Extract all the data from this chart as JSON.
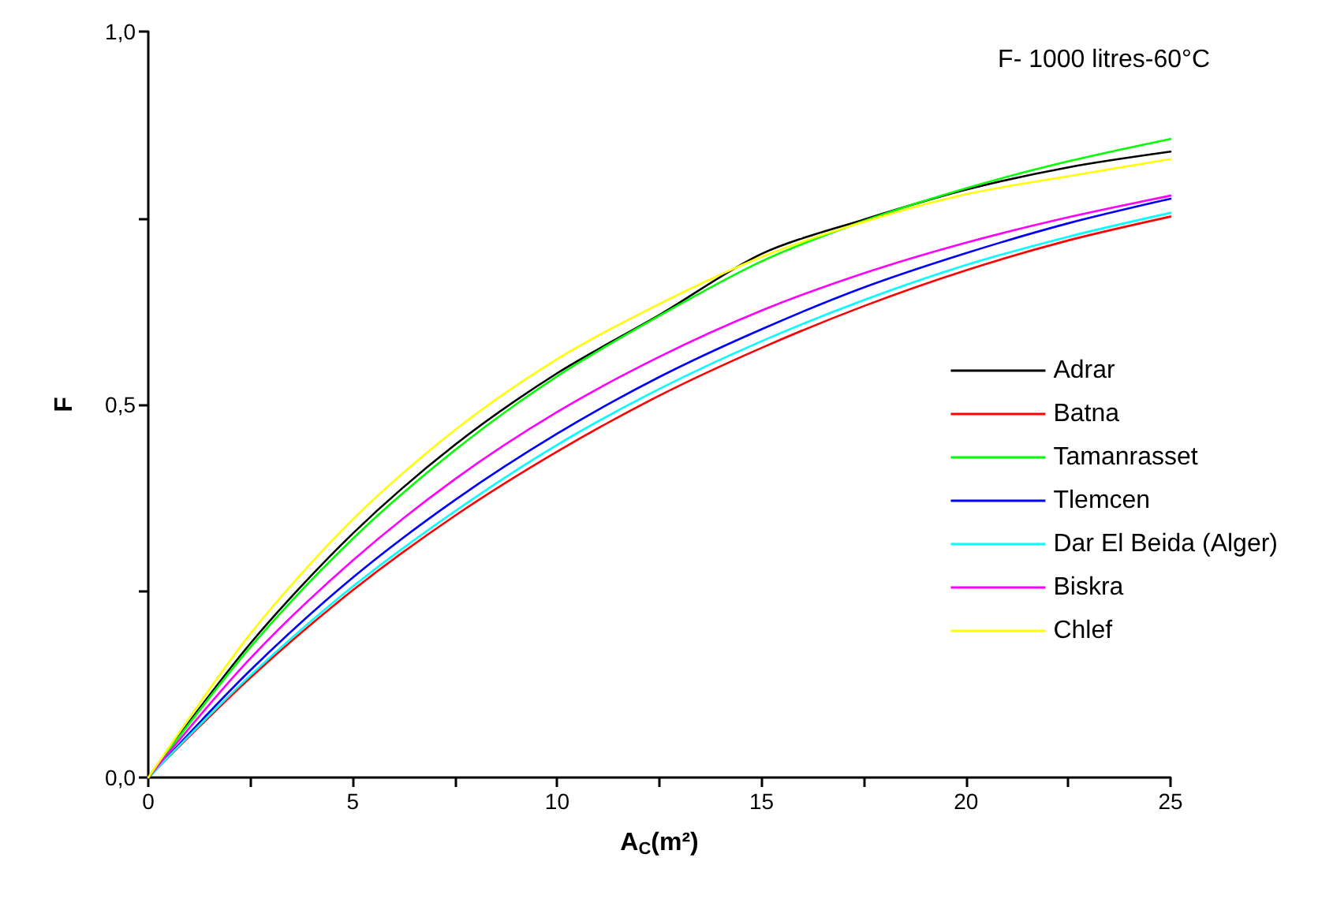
{
  "chart_data": {
    "type": "line",
    "xlabel": "A$_{C}$(m²)",
    "ylabel": "F",
    "annotations": [
      "F- 1000 litres-60°C"
    ],
    "x": [
      0,
      2.5,
      5,
      7.5,
      10,
      12.5,
      15,
      17.5,
      20,
      22.5,
      25
    ],
    "series": [
      {
        "name": "Adrar",
        "color": "#000000",
        "values": [
          0,
          0.18,
          0.327,
          0.446,
          0.542,
          0.62,
          0.702,
          0.748,
          0.788,
          0.818,
          0.839
        ]
      },
      {
        "name": "Batna",
        "color": "#ff0000",
        "values": [
          0,
          0.134,
          0.251,
          0.351,
          0.437,
          0.512,
          0.576,
          0.632,
          0.68,
          0.72,
          0.752
        ]
      },
      {
        "name": "Tamanrasset",
        "color": "#00ff00",
        "values": [
          0,
          0.175,
          0.32,
          0.439,
          0.538,
          0.619,
          0.692,
          0.746,
          0.79,
          0.826,
          0.856
        ]
      },
      {
        "name": "Tlemcen",
        "color": "#0000ff",
        "values": [
          0,
          0.144,
          0.268,
          0.372,
          0.461,
          0.537,
          0.601,
          0.657,
          0.703,
          0.743,
          0.776
        ]
      },
      {
        "name": "Dar El Beida (Alger)",
        "color": "#00ffff",
        "values": [
          0,
          0.137,
          0.256,
          0.357,
          0.446,
          0.521,
          0.585,
          0.64,
          0.687,
          0.725,
          0.757
        ]
      },
      {
        "name": "Biskra",
        "color": "#ff00ff",
        "values": [
          0,
          0.16,
          0.291,
          0.4,
          0.49,
          0.564,
          0.626,
          0.676,
          0.717,
          0.751,
          0.78
        ]
      },
      {
        "name": "Chlef",
        "color": "#ffff00",
        "values": [
          0,
          0.193,
          0.346,
          0.466,
          0.561,
          0.635,
          0.698,
          0.745,
          0.782,
          0.806,
          0.829
        ]
      }
    ],
    "xlim": [
      0,
      25
    ],
    "xticks": [
      0,
      {
        "value": 2.5,
        "label": null
      },
      5,
      {
        "value": 7.5,
        "label": null
      },
      10,
      {
        "value": 12.5,
        "label": null
      },
      15,
      {
        "value": 17.5,
        "label": null
      },
      20,
      {
        "value": 22.5,
        "label": null
      },
      25
    ],
    "ylim": [
      0,
      1
    ],
    "yticks": [
      {
        "value": 0,
        "label": "0,0"
      },
      {
        "value": 0.25,
        "label": null
      },
      {
        "value": 0.5,
        "label": "0,5"
      },
      {
        "value": 0.75,
        "label": null
      },
      {
        "value": 1,
        "label": "1,0"
      }
    ],
    "grid": false,
    "legend": "right",
    "marker": "none",
    "line_style": "solid"
  }
}
